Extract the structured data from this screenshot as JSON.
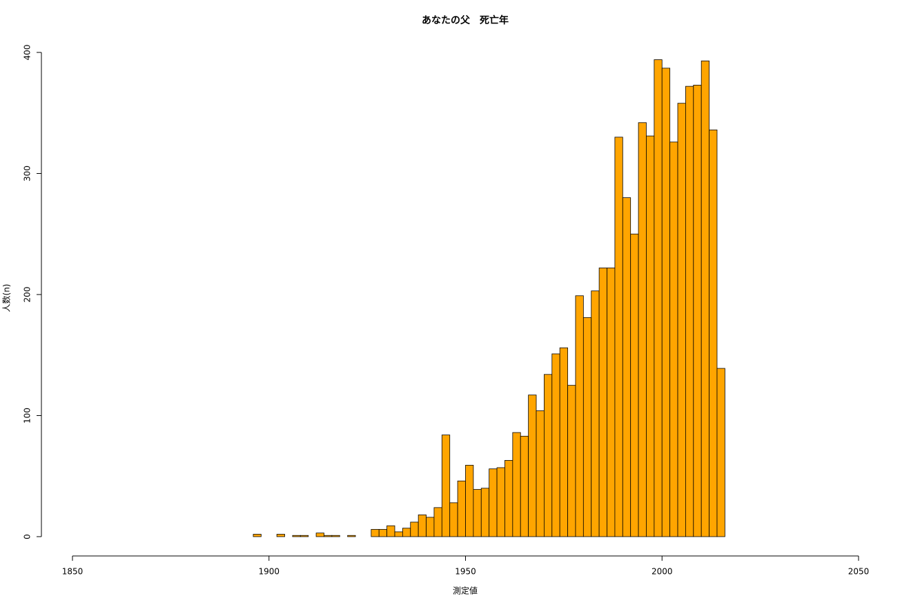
{
  "chart_data": {
    "type": "histogram",
    "title": "あなたの父　死亡年",
    "x_label": "測定値",
    "y_label": "人数(n)",
    "bins": [
      1896,
      1898,
      1900,
      1902,
      1904,
      1906,
      1908,
      1910,
      1912,
      1914,
      1916,
      1918,
      1920,
      1922,
      1924,
      1926,
      1928,
      1930,
      1932,
      1934,
      1936,
      1938,
      1940,
      1942,
      1944,
      1946,
      1948,
      1950,
      1952,
      1954,
      1956,
      1958,
      1960,
      1962,
      1964,
      1966,
      1968,
      1970,
      1972,
      1974,
      1976,
      1978,
      1980,
      1982,
      1984,
      1986,
      1988,
      1990,
      1992,
      1994,
      1996,
      1998,
      2000,
      2002,
      2004,
      2006,
      2008,
      2010,
      2012,
      2014,
      2016
    ],
    "values": [
      2,
      0,
      0,
      2,
      0,
      1,
      1,
      0,
      3,
      1,
      1,
      0,
      1,
      0,
      0,
      6,
      6,
      9,
      4,
      7,
      12,
      18,
      16,
      24,
      84,
      28,
      46,
      59,
      39,
      40,
      56,
      57,
      63,
      86,
      83,
      117,
      104,
      134,
      151,
      156,
      125,
      199,
      181,
      203,
      222,
      222,
      330,
      280,
      250,
      342,
      331,
      394,
      387,
      326,
      358,
      372,
      373,
      393,
      336,
      139
    ],
    "color": "#ffa500",
    "xlim": [
      1850,
      2050
    ],
    "xticks": [
      1850,
      1900,
      1950,
      2000,
      2050
    ],
    "ylim": [
      0,
      400
    ],
    "yticks": [
      0,
      100,
      200,
      300,
      400
    ]
  }
}
